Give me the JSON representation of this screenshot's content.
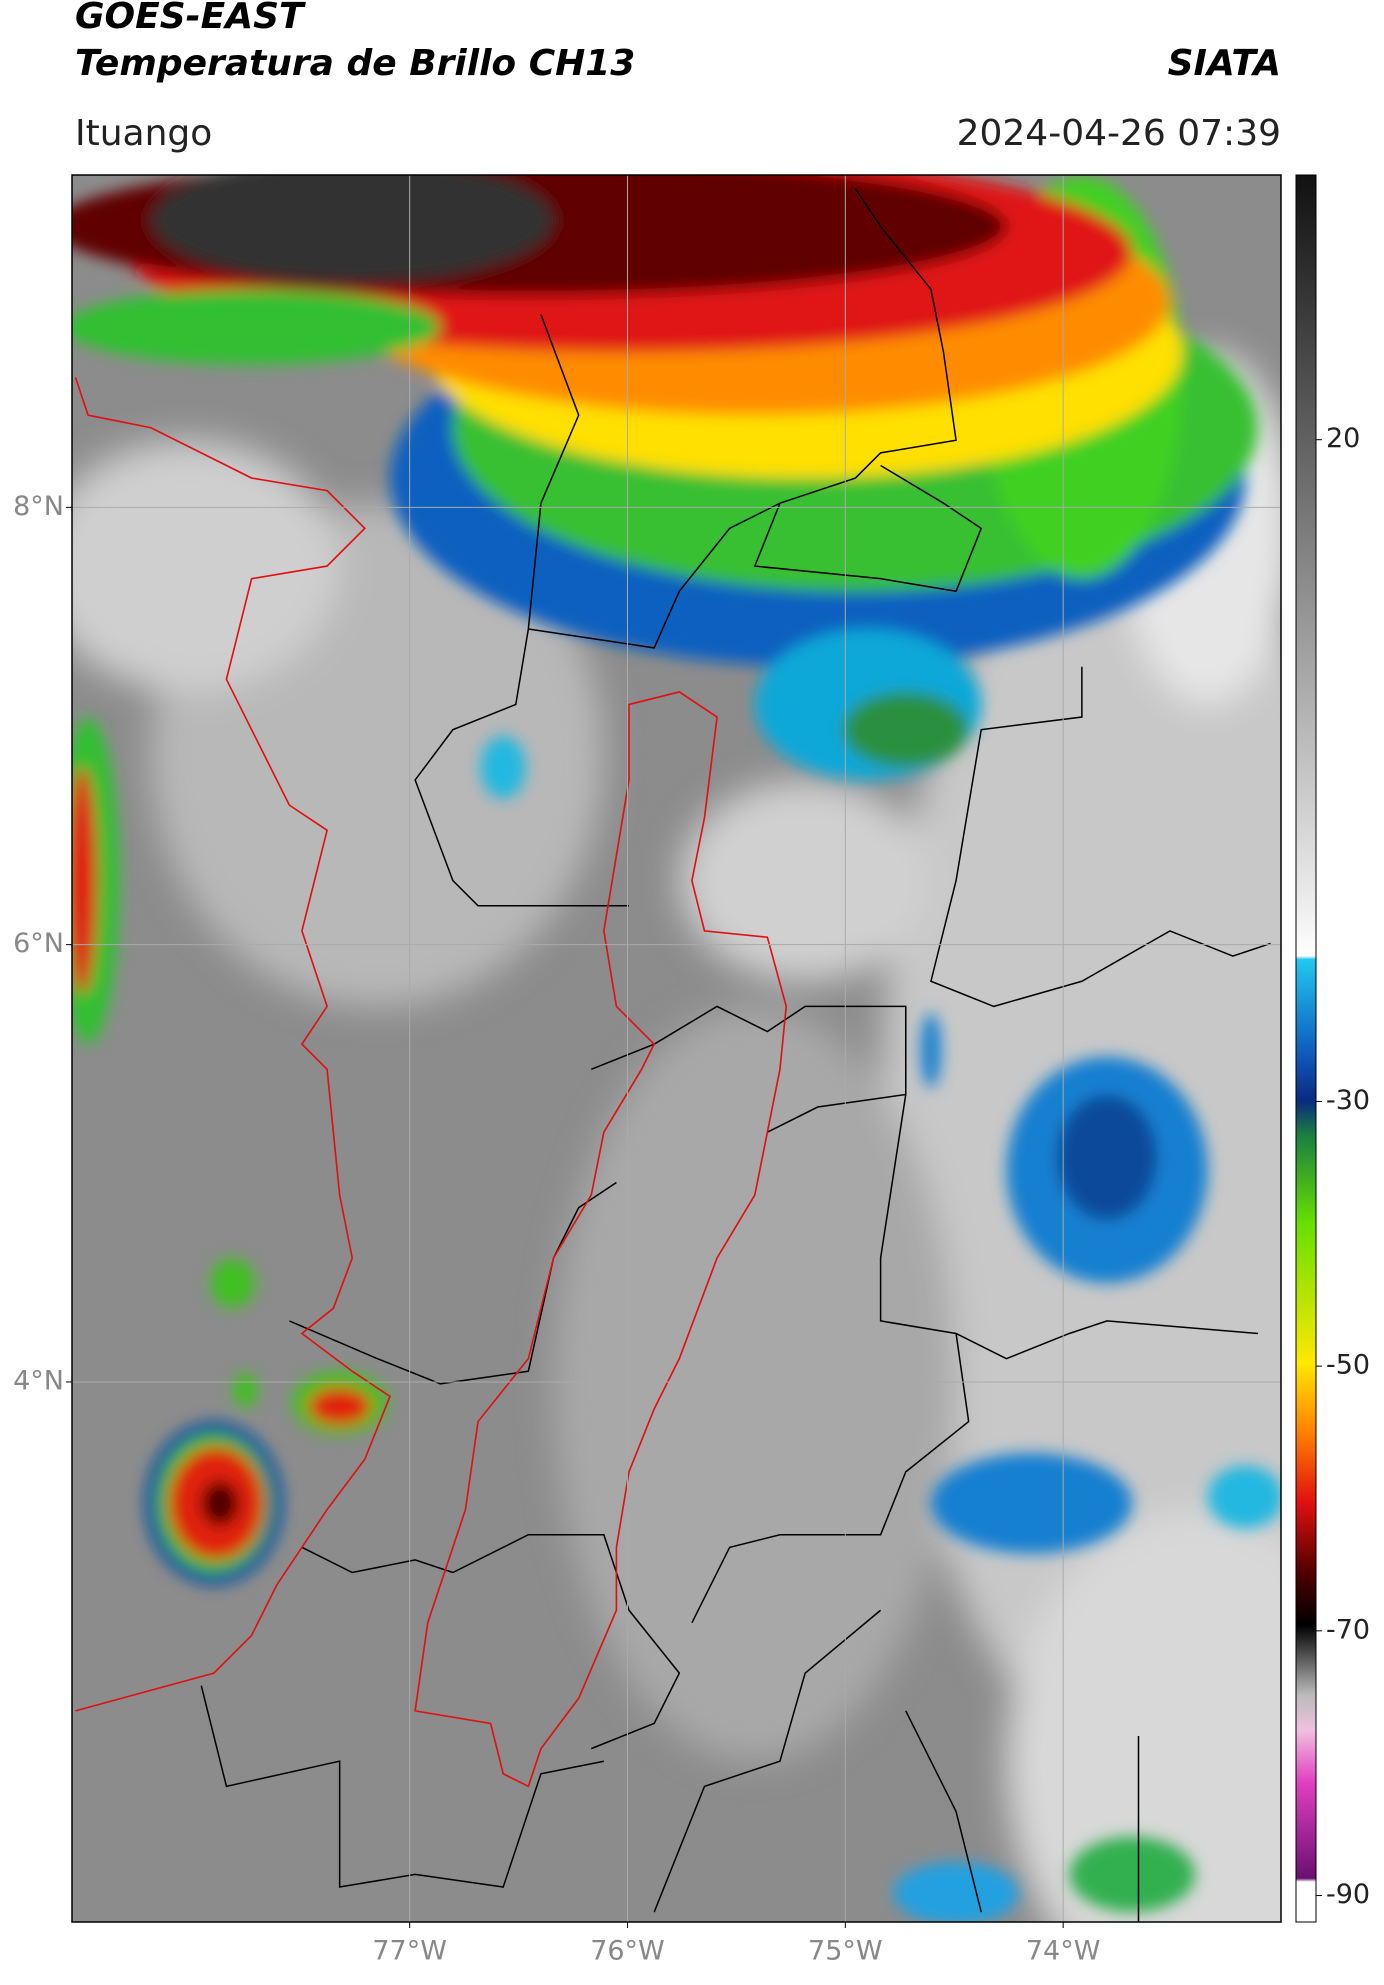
{
  "header": {
    "title": "GOES-EAST",
    "subtitle": "Temperatura de Brillo CH13",
    "source": "SIATA",
    "region": "Ituango",
    "timestamp": "2024-04-26 07:39"
  },
  "map": {
    "xlim": [
      -78.55,
      -73.0
    ],
    "ylim": [
      1.53,
      9.52
    ],
    "xticks": [
      {
        "value": -77,
        "label": "77°W"
      },
      {
        "value": -76,
        "label": "76°W"
      },
      {
        "value": -75,
        "label": "75°W"
      },
      {
        "value": -74,
        "label": "74°W"
      }
    ],
    "yticks": [
      {
        "value": 8,
        "label": "8°N"
      },
      {
        "value": 6,
        "label": "6°N"
      },
      {
        "value": 4,
        "label": "4°N"
      }
    ]
  },
  "colorbar": {
    "clim": [
      -92,
      40
    ],
    "ticks": [
      20,
      -30,
      -50,
      -70,
      -90
    ]
  }
}
